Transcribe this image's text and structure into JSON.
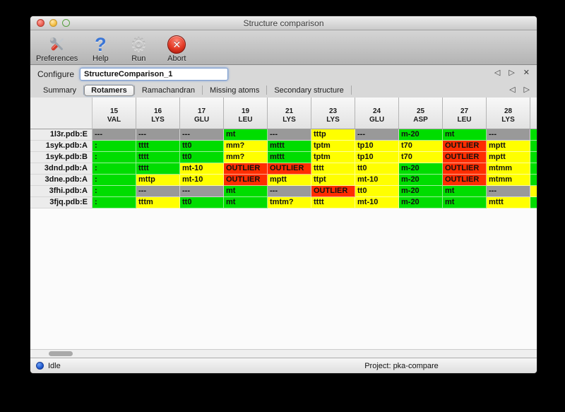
{
  "window": {
    "title": "Structure comparison"
  },
  "toolbar": {
    "items": [
      {
        "label": "Preferences",
        "icon": "tools-icon"
      },
      {
        "label": "Help",
        "icon": "question-mark-icon",
        "glyph": "?"
      },
      {
        "label": "Run",
        "icon": "gear-icon",
        "glyph": "⚙"
      },
      {
        "label": "Abort",
        "icon": "abort-x-icon",
        "glyph": "✕"
      }
    ]
  },
  "configure": {
    "label": "Configure",
    "value": "StructureComparison_1",
    "nav": {
      "back": "◁",
      "forward": "▷",
      "close": "✕"
    }
  },
  "tabs": {
    "items": [
      "Summary",
      "Rotamers",
      "Ramachandran",
      "Missing atoms",
      "Secondary structure"
    ],
    "selected": "Rotamers",
    "nav": {
      "back": "◁",
      "forward": "▷"
    }
  },
  "colors": {
    "green": "#00dd00",
    "yellow": "#ffff00",
    "red": "#ff2d00",
    "gray": "#999999"
  },
  "table": {
    "columns": [
      {
        "num": "15",
        "res": "VAL"
      },
      {
        "num": "16",
        "res": "LYS"
      },
      {
        "num": "17",
        "res": "GLU"
      },
      {
        "num": "19",
        "res": "LEU"
      },
      {
        "num": "21",
        "res": "LYS"
      },
      {
        "num": "23",
        "res": "LYS"
      },
      {
        "num": "24",
        "res": "GLU"
      },
      {
        "num": "25",
        "res": "ASP"
      },
      {
        "num": "27",
        "res": "LEU"
      },
      {
        "num": "28",
        "res": "LYS"
      }
    ],
    "rows": [
      {
        "label": "1l3r.pdb:E",
        "cells": [
          [
            "---",
            "gray"
          ],
          [
            "---",
            "gray"
          ],
          [
            "---",
            "gray"
          ],
          [
            "mt",
            "green"
          ],
          [
            "---",
            "gray"
          ],
          [
            "tttp",
            "yellow"
          ],
          [
            "---",
            "gray"
          ],
          [
            "m-20",
            "green"
          ],
          [
            "mt",
            "green"
          ],
          [
            "---",
            "gray"
          ]
        ],
        "sliver": "green"
      },
      {
        "label": "1syk.pdb:A",
        "cells": [
          [
            ":",
            "green"
          ],
          [
            "tttt",
            "green"
          ],
          [
            "tt0",
            "green"
          ],
          [
            "mm?",
            "yellow"
          ],
          [
            "mttt",
            "green"
          ],
          [
            "tptm",
            "yellow"
          ],
          [
            "tp10",
            "yellow"
          ],
          [
            "t70",
            "yellow"
          ],
          [
            "OUTLIER",
            "red"
          ],
          [
            "mptt",
            "yellow"
          ]
        ],
        "sliver": "green"
      },
      {
        "label": "1syk.pdb:B",
        "cells": [
          [
            ":",
            "green"
          ],
          [
            "tttt",
            "green"
          ],
          [
            "tt0",
            "green"
          ],
          [
            "mm?",
            "yellow"
          ],
          [
            "mttt",
            "green"
          ],
          [
            "tptm",
            "yellow"
          ],
          [
            "tp10",
            "yellow"
          ],
          [
            "t70",
            "yellow"
          ],
          [
            "OUTLIER",
            "red"
          ],
          [
            "mptt",
            "yellow"
          ]
        ],
        "sliver": "green"
      },
      {
        "label": "3dnd.pdb:A",
        "cells": [
          [
            ":",
            "green"
          ],
          [
            "tttt",
            "green"
          ],
          [
            "mt-10",
            "yellow"
          ],
          [
            "OUTLIER",
            "red"
          ],
          [
            "OUTLIER",
            "red"
          ],
          [
            "tttt",
            "yellow"
          ],
          [
            "tt0",
            "yellow"
          ],
          [
            "m-20",
            "green"
          ],
          [
            "OUTLIER",
            "red"
          ],
          [
            "mtmm",
            "yellow"
          ]
        ],
        "sliver": "green"
      },
      {
        "label": "3dne.pdb:A",
        "cells": [
          [
            ":",
            "green"
          ],
          [
            "mttp",
            "yellow"
          ],
          [
            "mt-10",
            "yellow"
          ],
          [
            "OUTLIER",
            "red"
          ],
          [
            "mptt",
            "yellow"
          ],
          [
            "ttpt",
            "yellow"
          ],
          [
            "mt-10",
            "yellow"
          ],
          [
            "m-20",
            "green"
          ],
          [
            "OUTLIER",
            "red"
          ],
          [
            "mtmm",
            "yellow"
          ]
        ],
        "sliver": "green"
      },
      {
        "label": "3fhi.pdb:A",
        "cells": [
          [
            ":",
            "green"
          ],
          [
            "---",
            "gray"
          ],
          [
            "---",
            "gray"
          ],
          [
            "mt",
            "green"
          ],
          [
            "---",
            "gray"
          ],
          [
            "OUTLIER",
            "red"
          ],
          [
            "tt0",
            "yellow"
          ],
          [
            "m-20",
            "green"
          ],
          [
            "mt",
            "green"
          ],
          [
            "---",
            "gray"
          ]
        ],
        "sliver": "yellow"
      },
      {
        "label": "3fjq.pdb:E",
        "cells": [
          [
            ":",
            "green"
          ],
          [
            "tttm",
            "yellow"
          ],
          [
            "tt0",
            "green"
          ],
          [
            "mt",
            "green"
          ],
          [
            "tmtm?",
            "yellow"
          ],
          [
            "tttt",
            "yellow"
          ],
          [
            "mt-10",
            "yellow"
          ],
          [
            "m-20",
            "green"
          ],
          [
            "mt",
            "green"
          ],
          [
            "mttt",
            "yellow"
          ]
        ],
        "sliver": "green"
      }
    ]
  },
  "status": {
    "state": "Idle",
    "project": "Project: pka-compare"
  }
}
